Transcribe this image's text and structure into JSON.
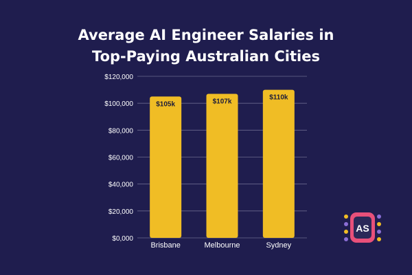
{
  "title_line1": "Average AI Engineer Salaries in",
  "title_line2": "Top-Paying Australian Cities",
  "logo_text": "AS",
  "colors": {
    "background": "#1f1d4e",
    "bar": "#f0bd25",
    "text": "#ffffff",
    "label": "#1a1a3a",
    "grid": "#6b6a8e",
    "logo_pink": "#e8507a",
    "logo_dark": "#2a2858",
    "logo_dot_yellow": "#f0bd25",
    "logo_dot_purple": "#8b6fd6"
  },
  "chart_data": {
    "type": "bar",
    "title": "Average AI Engineer Salaries in Top-Paying Australian Cities",
    "categories": [
      "Brisbane",
      "Melbourne",
      "Sydney"
    ],
    "values": [
      105000,
      107000,
      110000
    ],
    "data_labels": [
      "$105k",
      "$107k",
      "$110k"
    ],
    "ylim": [
      0,
      120000
    ],
    "yticks": [
      0,
      20000,
      40000,
      60000,
      80000,
      100000,
      120000
    ],
    "ytick_labels": [
      "$0,000",
      "$20,000",
      "$40,000",
      "$60,000",
      "$80,000",
      "$100,000",
      "$120,000"
    ],
    "grid": true,
    "legend": false
  }
}
